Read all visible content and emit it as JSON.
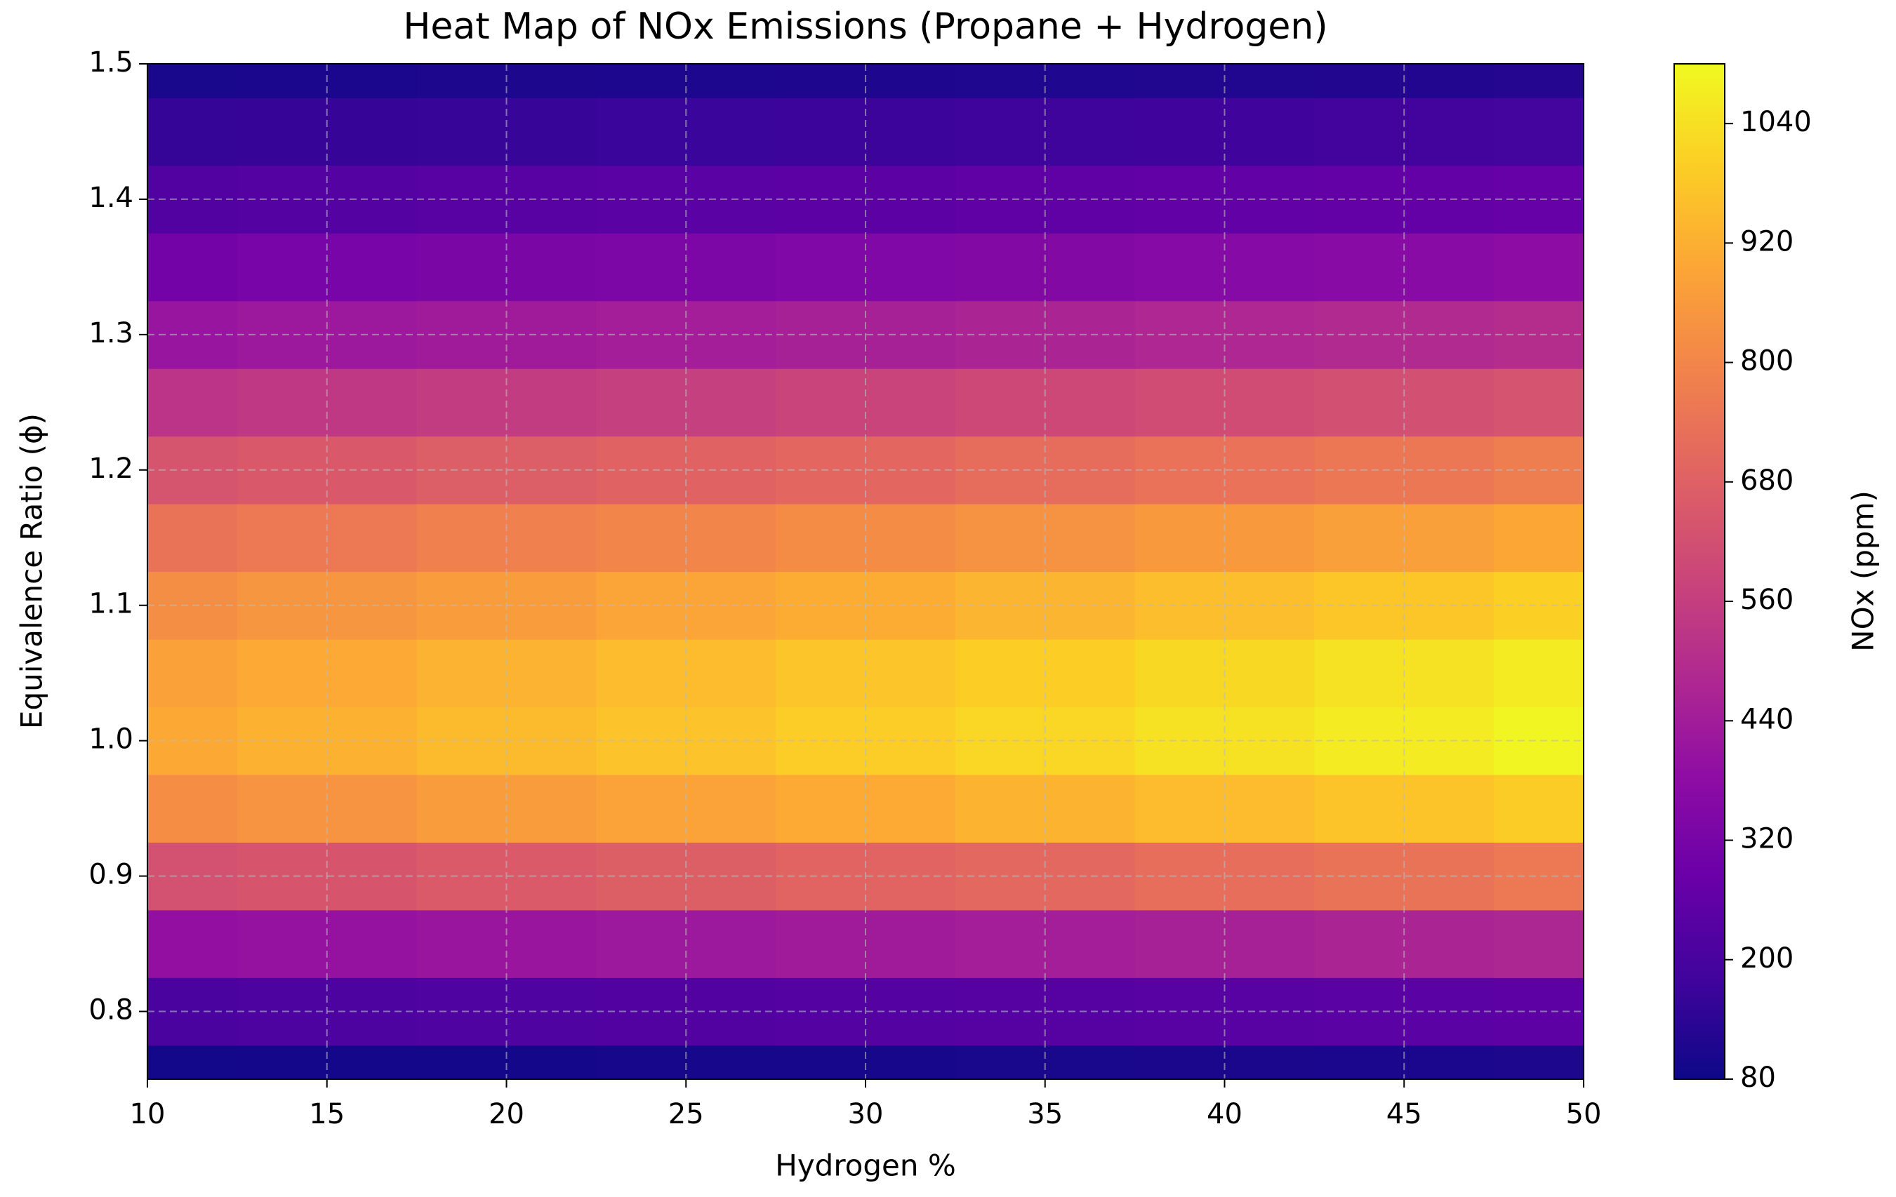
{
  "chart_data": {
    "type": "heatmap",
    "title": "Heat Map of NOx Emissions (Propane + Hydrogen)",
    "x_label": "Hydrogen %",
    "y_label": "Equivalence Ratio (ϕ)",
    "colorbar_label": "NOx (ppm)",
    "colormap": "plasma",
    "grid": true,
    "x": [
      10,
      15,
      20,
      25,
      30,
      35,
      40,
      45,
      50
    ],
    "y": [
      0.75,
      0.8,
      0.85,
      0.9,
      0.95,
      1.0,
      1.05,
      1.1,
      1.15,
      1.2,
      1.25,
      1.3,
      1.35,
      1.4,
      1.45,
      1.5
    ],
    "z": [
      [
        91,
        93,
        95,
        98,
        100,
        103,
        105,
        107,
        110
      ],
      [
        207,
        213,
        218,
        223,
        229,
        234,
        240,
        245,
        251
      ],
      [
        394,
        405,
        415,
        425,
        436,
        446,
        457,
        467,
        477
      ],
      [
        624,
        640,
        657,
        673,
        690,
        706,
        723,
        739,
        755
      ],
      [
        821,
        843,
        865,
        886,
        907,
        929,
        951,
        972,
        994
      ],
      [
        900,
        924,
        948,
        971,
        995,
        1019,
        1043,
        1066,
        1090
      ],
      [
        881,
        905,
        928,
        951,
        974,
        998,
        1021,
        1044,
        1067
      ],
      [
        825,
        847,
        869,
        890,
        912,
        934,
        956,
        978,
        1000
      ],
      [
        741,
        760,
        780,
        799,
        819,
        839,
        858,
        877,
        897
      ],
      [
        636,
        653,
        670,
        686,
        703,
        720,
        737,
        754,
        771
      ],
      [
        524,
        538,
        552,
        565,
        579,
        593,
        607,
        620,
        634
      ],
      [
        413,
        424,
        435,
        446,
        457,
        468,
        479,
        489,
        500
      ],
      [
        311,
        320,
        328,
        336,
        344,
        353,
        361,
        369,
        377
      ],
      [
        226,
        232,
        238,
        244,
        250,
        256,
        262,
        268,
        274
      ],
      [
        156,
        160,
        164,
        168,
        172,
        176,
        180,
        184,
        189
      ],
      [
        104,
        106,
        109,
        112,
        114,
        117,
        120,
        123,
        125
      ]
    ],
    "xlim": [
      10,
      50
    ],
    "ylim": [
      0.75,
      1.5
    ],
    "xticks": [
      10,
      15,
      20,
      25,
      30,
      35,
      40,
      45,
      50
    ],
    "yticks": [
      0.8,
      0.9,
      {
        "value": 1,
        "label": "1.0"
      },
      1.1,
      1.2,
      1.3,
      1.4,
      1.5
    ],
    "zlim": [
      80,
      1100
    ],
    "zticks": [
      80,
      200,
      320,
      440,
      560,
      680,
      800,
      920,
      1040
    ]
  }
}
